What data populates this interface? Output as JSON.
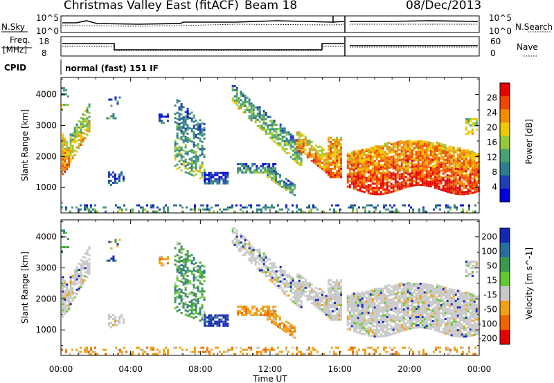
{
  "header": {
    "station": "Christmas Valley East (fitACF)",
    "beam": "Beam 18",
    "date": "08/Dec/2013"
  },
  "panels": {
    "nsky_label": "N.Sky",
    "nsearch_label": "N.Search",
    "freq_label_1": "Freq.",
    "freq_label_2": "[MHz]",
    "nave_label": "Nave",
    "cpid_label": "CPID",
    "cpid_value": "normal (fast) 151 IF",
    "noise_ticks_left": [
      "10^5",
      "10^0"
    ],
    "noise_ticks_right": [
      "10^5",
      "10^0"
    ],
    "freq_ticks_left": [
      "18",
      "8"
    ],
    "nave_ticks_right": [
      "60",
      "0"
    ]
  },
  "chart_data": [
    {
      "type": "heatmap",
      "quantity": "Power",
      "ylabel": "Slant Range [km]",
      "xlabel": "Time UT",
      "x_ticks": [
        "00:00",
        "04:00",
        "08:00",
        "12:00",
        "16:00",
        "20:00",
        "00:00"
      ],
      "x_range_hours": [
        0,
        24
      ],
      "y_ticks": [
        1000,
        2000,
        3000,
        4000
      ],
      "ylim": [
        180,
        4550
      ],
      "colorbar_label": "Power [dB]",
      "colorbar_ticks": [
        4,
        8,
        12,
        16,
        20,
        24,
        28
      ],
      "colorbar_range": [
        0,
        32
      ],
      "colors": [
        "#0000e0",
        "#1e3fb4",
        "#2e7c8c",
        "#4aa070",
        "#96c83c",
        "#f0c800",
        "#f08c00",
        "#f04600",
        "#e60000"
      ],
      "grid": false
    },
    {
      "type": "heatmap",
      "quantity": "Velocity",
      "ylabel": "Slant Range [km]",
      "xlabel": "Time UT",
      "x_ticks": [
        "00:00",
        "04:00",
        "08:00",
        "12:00",
        "16:00",
        "20:00",
        "00:00"
      ],
      "x_range_hours": [
        0,
        24
      ],
      "y_ticks": [
        1000,
        2000,
        3000,
        4000
      ],
      "ylim": [
        180,
        4550
      ],
      "colorbar_label": "Velocity [m s^-1]",
      "colorbar_ticks": [
        "200",
        "100",
        "50",
        "15",
        "-15",
        "-50",
        "-100",
        "-200"
      ],
      "colors": [
        "#1428b4",
        "#2a6ea0",
        "#3c9650",
        "#64c832",
        "#c8c8c8",
        "#f0a014",
        "#f06400",
        "#e60000"
      ],
      "grid": false
    }
  ]
}
